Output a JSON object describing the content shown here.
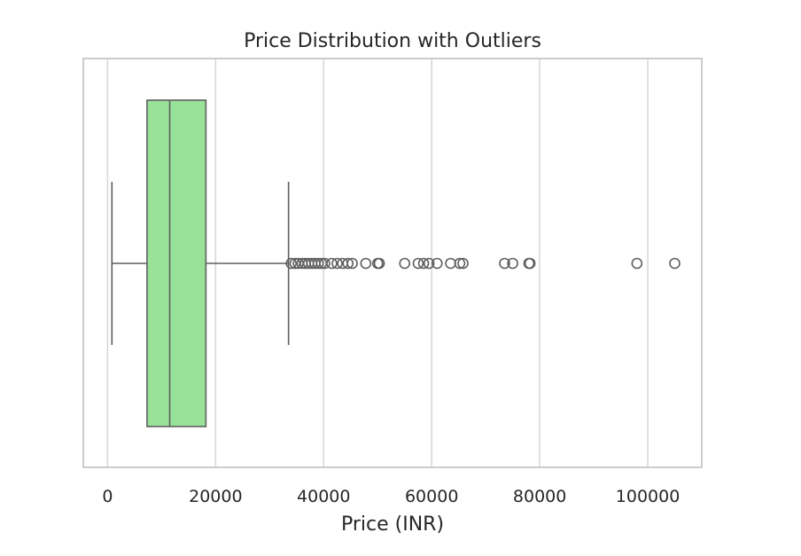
{
  "chart_data": {
    "type": "box",
    "orientation": "horizontal",
    "title": "Price Distribution with Outliers",
    "xlabel": "Price (INR)",
    "ylabel": "",
    "xlim": [
      -4500,
      110000
    ],
    "x_ticks": [
      0,
      20000,
      40000,
      60000,
      80000,
      100000
    ],
    "x_tick_labels": [
      "0",
      "20000",
      "40000",
      "60000",
      "80000",
      "100000"
    ],
    "grid": "vertical",
    "box": {
      "whisker_low": 800,
      "q1": 7300,
      "median": 11500,
      "q3": 18200,
      "whisker_high": 33500
    },
    "outliers": [
      34000,
      34700,
      35300,
      36000,
      36600,
      37200,
      37800,
      38400,
      39000,
      39600,
      40200,
      41500,
      42500,
      43500,
      44500,
      45300,
      47800,
      50000,
      50300,
      55000,
      57500,
      58500,
      59500,
      61000,
      63500,
      65200,
      65800,
      73500,
      75000,
      78000,
      78200,
      98000,
      105000
    ],
    "colors": {
      "box_fill": "#98e29a",
      "lines": "#5f5f5f",
      "grid": "#d6d6d6",
      "frame": "#cccccc"
    }
  }
}
